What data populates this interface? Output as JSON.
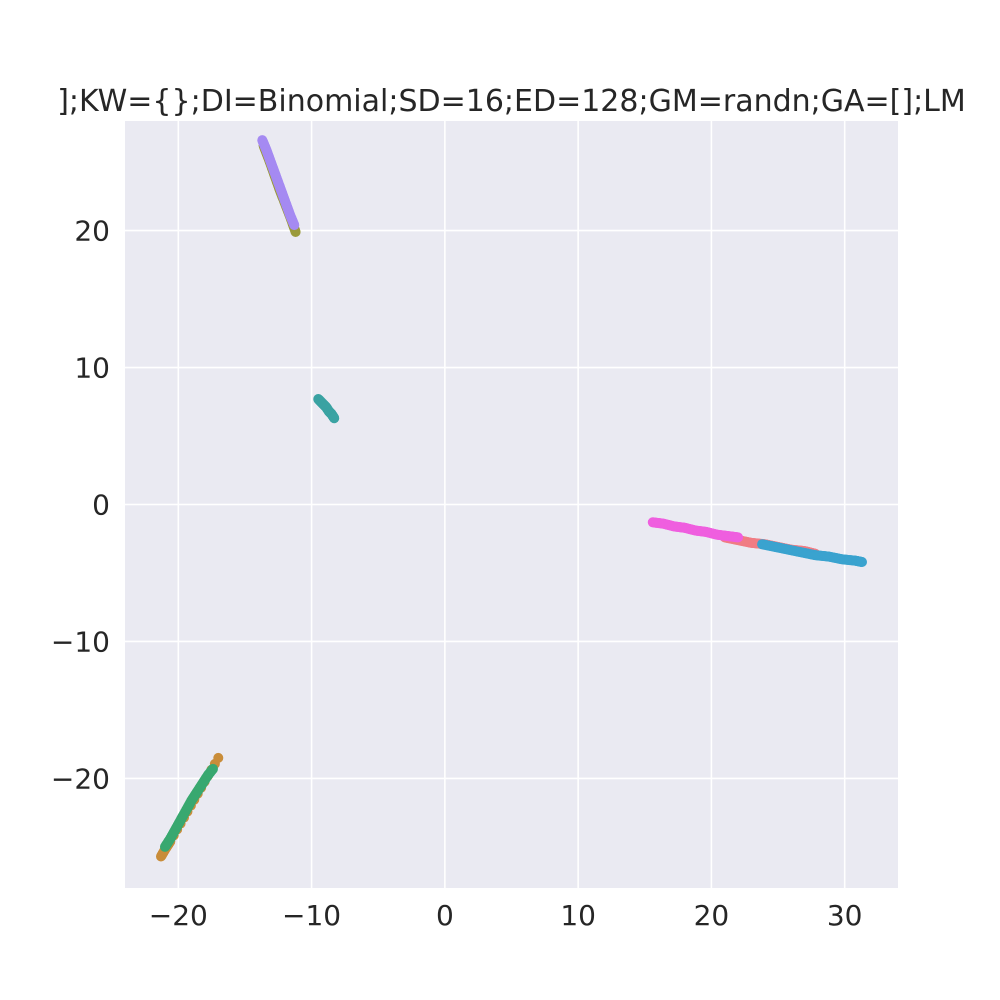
{
  "chart_data": {
    "type": "scatter",
    "title": "];KW={};DI=Binomial;SD=16;ED=128;GM=randn;GA=[];LM",
    "xlabel": "",
    "ylabel": "",
    "xlim": [
      -24,
      34
    ],
    "ylim": [
      -28,
      28
    ],
    "xticks": [
      -20,
      -10,
      0,
      10,
      20,
      30
    ],
    "yticks": [
      -20,
      -10,
      0,
      10,
      20
    ],
    "xtick_labels": [
      "−20",
      "−10",
      "0",
      "10",
      "20",
      "30"
    ],
    "ytick_labels": [
      "−20",
      "−10",
      "0",
      "10",
      "20"
    ],
    "grid": true,
    "background": "#eaeaf2",
    "grid_color": "#ffffff",
    "series": [
      {
        "color": "#9a9a3a",
        "x": [
          -13.6,
          -13.2,
          -12.8,
          -12.4,
          -12.0,
          -11.6,
          -11.2
        ],
        "y": [
          26.2,
          25.2,
          24.1,
          23.0,
          22.0,
          21.0,
          19.9
        ]
      },
      {
        "color": "#a58af2",
        "x": [
          -13.7,
          -13.4,
          -13.1,
          -12.8,
          -12.5,
          -12.2,
          -11.9,
          -11.6,
          -11.3
        ],
        "y": [
          26.6,
          25.9,
          25.1,
          24.3,
          23.5,
          22.7,
          21.9,
          21.1,
          20.4
        ]
      },
      {
        "color": "#3ba3a3",
        "x": [
          -9.5,
          -9.3,
          -9.1,
          -8.9,
          -8.7,
          -8.5,
          -8.3
        ],
        "y": [
          7.7,
          7.5,
          7.3,
          7.1,
          6.8,
          6.6,
          6.3
        ]
      },
      {
        "color": "#f07c84",
        "x": [
          21.0,
          22.0,
          23.0,
          24.0,
          25.0,
          26.0,
          27.0,
          27.8
        ],
        "y": [
          -2.4,
          -2.6,
          -2.8,
          -2.9,
          -3.1,
          -3.3,
          -3.4,
          -3.6
        ]
      },
      {
        "color": "#ef5fdf",
        "x": [
          15.6,
          16.4,
          17.2,
          18.0,
          18.8,
          19.6,
          20.4,
          21.2,
          22.0
        ],
        "y": [
          -1.3,
          -1.4,
          -1.6,
          -1.7,
          -1.9,
          -2.0,
          -2.2,
          -2.3,
          -2.4
        ]
      },
      {
        "color": "#3aa3cf",
        "x": [
          23.8,
          24.8,
          25.8,
          26.8,
          27.8,
          28.8,
          29.8,
          30.8,
          31.3
        ],
        "y": [
          -2.9,
          -3.1,
          -3.3,
          -3.5,
          -3.7,
          -3.8,
          -4.0,
          -4.1,
          -4.2
        ]
      },
      {
        "color": "#c98d3a",
        "x": [
          -21.3,
          -21.0,
          -20.6,
          -17.0
        ],
        "y": [
          -25.7,
          -25.2,
          -24.6,
          -18.5
        ]
      },
      {
        "color": "#39a870",
        "x": [
          -21.0,
          -20.6,
          -20.2,
          -19.8,
          -19.4,
          -19.0,
          -18.6,
          -18.2,
          -17.8,
          -17.4
        ],
        "y": [
          -25.0,
          -24.4,
          -23.7,
          -23.0,
          -22.3,
          -21.6,
          -21.0,
          -20.4,
          -19.8,
          -19.3
        ]
      }
    ]
  }
}
